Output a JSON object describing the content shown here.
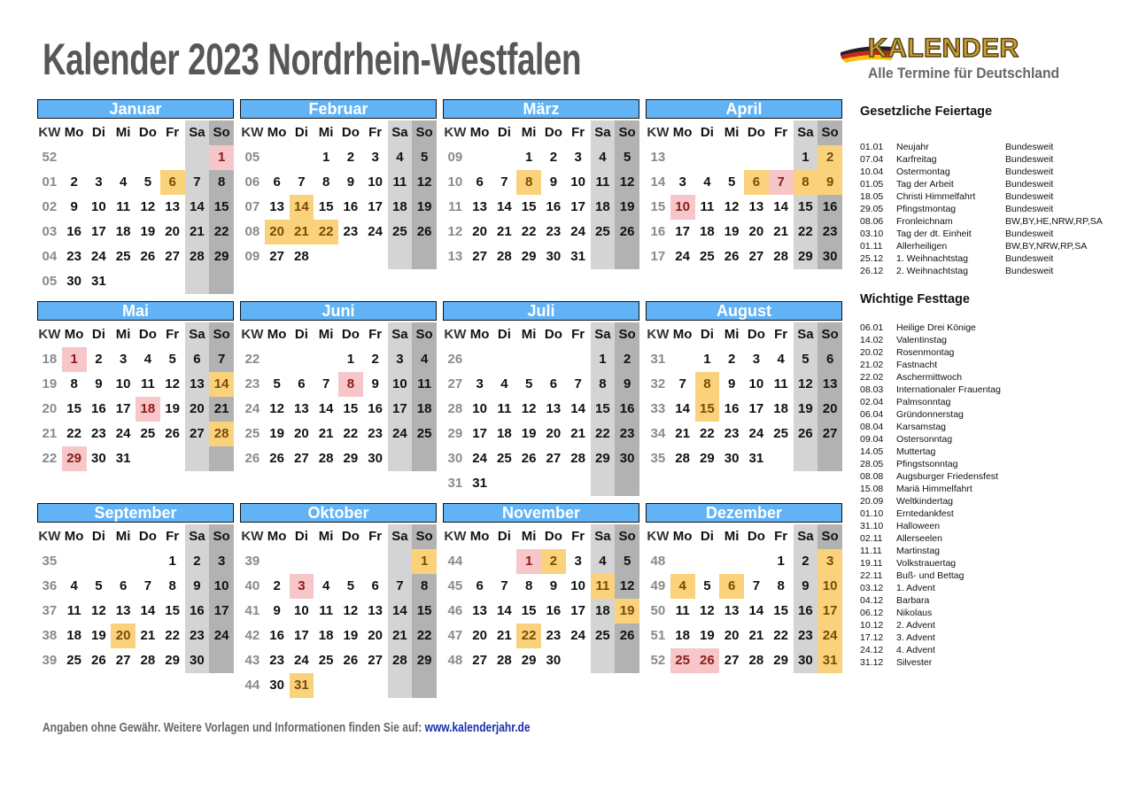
{
  "title": "Kalender 2023 Nordrhein-Westfalen",
  "logo": {
    "word": "KALENDER",
    "subtitle": "Alle Termine für Deutschland"
  },
  "weekday_header": [
    "KW",
    "Mo",
    "Di",
    "Mi",
    "Do",
    "Fr",
    "Sa",
    "So"
  ],
  "colors": {
    "header_blue": "#61b3f5",
    "saturday": "#d4d4d4",
    "sunday": "#b2b2b2",
    "holiday": "#f6c6c8",
    "festtag": "#fbd27c"
  },
  "months": [
    {
      "name": "Januar",
      "holidays": [
        1
      ],
      "festtage": [
        6
      ],
      "weeks": [
        [
          "52",
          "",
          "",
          "",
          "",
          "",
          "",
          1
        ],
        [
          "01",
          2,
          3,
          4,
          5,
          6,
          7,
          8
        ],
        [
          "02",
          9,
          10,
          11,
          12,
          13,
          14,
          15
        ],
        [
          "03",
          16,
          17,
          18,
          19,
          20,
          21,
          22
        ],
        [
          "04",
          23,
          24,
          25,
          26,
          27,
          28,
          29
        ],
        [
          "05",
          30,
          31,
          "",
          "",
          "",
          "",
          ""
        ]
      ]
    },
    {
      "name": "Februar",
      "holidays": [],
      "festtage": [
        14,
        20,
        21,
        22
      ],
      "weeks": [
        [
          "05",
          "",
          "",
          1,
          2,
          3,
          4,
          5
        ],
        [
          "06",
          6,
          7,
          8,
          9,
          10,
          11,
          12
        ],
        [
          "07",
          13,
          14,
          15,
          16,
          17,
          18,
          19
        ],
        [
          "08",
          20,
          21,
          22,
          23,
          24,
          25,
          26
        ],
        [
          "09",
          27,
          28,
          "",
          "",
          "",
          "",
          ""
        ]
      ]
    },
    {
      "name": "März",
      "holidays": [],
      "festtage": [
        8
      ],
      "weeks": [
        [
          "09",
          "",
          "",
          1,
          2,
          3,
          4,
          5
        ],
        [
          "10",
          6,
          7,
          8,
          9,
          10,
          11,
          12
        ],
        [
          "11",
          13,
          14,
          15,
          16,
          17,
          18,
          19
        ],
        [
          "12",
          20,
          21,
          22,
          23,
          24,
          25,
          26
        ],
        [
          "13",
          27,
          28,
          29,
          30,
          31,
          "",
          ""
        ]
      ]
    },
    {
      "name": "April",
      "holidays": [
        7,
        10
      ],
      "festtage": [
        2,
        6,
        8,
        9
      ],
      "weeks": [
        [
          "13",
          "",
          "",
          "",
          "",
          "",
          1,
          2
        ],
        [
          "14",
          3,
          4,
          5,
          6,
          7,
          8,
          9
        ],
        [
          "15",
          10,
          11,
          12,
          13,
          14,
          15,
          16
        ],
        [
          "16",
          17,
          18,
          19,
          20,
          21,
          22,
          23
        ],
        [
          "17",
          24,
          25,
          26,
          27,
          28,
          29,
          30
        ]
      ]
    },
    {
      "name": "Mai",
      "holidays": [
        1,
        18,
        29
      ],
      "festtage": [
        14,
        28
      ],
      "weeks": [
        [
          "18",
          1,
          2,
          3,
          4,
          5,
          6,
          7
        ],
        [
          "19",
          8,
          9,
          10,
          11,
          12,
          13,
          14
        ],
        [
          "20",
          15,
          16,
          17,
          18,
          19,
          20,
          21
        ],
        [
          "21",
          22,
          23,
          24,
          25,
          26,
          27,
          28
        ],
        [
          "22",
          29,
          30,
          31,
          "",
          "",
          "",
          ""
        ]
      ]
    },
    {
      "name": "Juni",
      "holidays": [
        8
      ],
      "festtage": [],
      "weeks": [
        [
          "22",
          "",
          "",
          "",
          1,
          2,
          3,
          4
        ],
        [
          "23",
          5,
          6,
          7,
          8,
          9,
          10,
          11
        ],
        [
          "24",
          12,
          13,
          14,
          15,
          16,
          17,
          18
        ],
        [
          "25",
          19,
          20,
          21,
          22,
          23,
          24,
          25
        ],
        [
          "26",
          26,
          27,
          28,
          29,
          30,
          "",
          ""
        ]
      ]
    },
    {
      "name": "Juli",
      "holidays": [],
      "festtage": [],
      "weeks": [
        [
          "26",
          "",
          "",
          "",
          "",
          "",
          1,
          2
        ],
        [
          "27",
          3,
          4,
          5,
          6,
          7,
          8,
          9
        ],
        [
          "28",
          10,
          11,
          12,
          13,
          14,
          15,
          16
        ],
        [
          "29",
          17,
          18,
          19,
          20,
          21,
          22,
          23
        ],
        [
          "30",
          24,
          25,
          26,
          27,
          28,
          29,
          30
        ],
        [
          "31",
          31,
          "",
          "",
          "",
          "",
          "",
          ""
        ]
      ]
    },
    {
      "name": "August",
      "holidays": [],
      "festtage": [
        8,
        15
      ],
      "weeks": [
        [
          "31",
          "",
          1,
          2,
          3,
          4,
          5,
          6
        ],
        [
          "32",
          7,
          8,
          9,
          10,
          11,
          12,
          13
        ],
        [
          "33",
          14,
          15,
          16,
          17,
          18,
          19,
          20
        ],
        [
          "34",
          21,
          22,
          23,
          24,
          25,
          26,
          27
        ],
        [
          "35",
          28,
          29,
          30,
          31,
          "",
          "",
          ""
        ]
      ]
    },
    {
      "name": "September",
      "holidays": [],
      "festtage": [
        20
      ],
      "weeks": [
        [
          "35",
          "",
          "",
          "",
          "",
          1,
          2,
          3
        ],
        [
          "36",
          4,
          5,
          6,
          7,
          8,
          9,
          10
        ],
        [
          "37",
          11,
          12,
          13,
          14,
          15,
          16,
          17
        ],
        [
          "38",
          18,
          19,
          20,
          21,
          22,
          23,
          24
        ],
        [
          "39",
          25,
          26,
          27,
          28,
          29,
          30,
          ""
        ]
      ]
    },
    {
      "name": "Oktober",
      "holidays": [
        3
      ],
      "festtage": [
        1,
        31
      ],
      "weeks": [
        [
          "39",
          "",
          "",
          "",
          "",
          "",
          "",
          1
        ],
        [
          "40",
          2,
          3,
          4,
          5,
          6,
          7,
          8
        ],
        [
          "41",
          9,
          10,
          11,
          12,
          13,
          14,
          15
        ],
        [
          "42",
          16,
          17,
          18,
          19,
          20,
          21,
          22
        ],
        [
          "43",
          23,
          24,
          25,
          26,
          27,
          28,
          29
        ],
        [
          "44",
          30,
          31,
          "",
          "",
          "",
          "",
          ""
        ]
      ]
    },
    {
      "name": "November",
      "holidays": [
        1
      ],
      "festtage": [
        2,
        11,
        19,
        22
      ],
      "weeks": [
        [
          "44",
          "",
          "",
          1,
          2,
          3,
          4,
          5
        ],
        [
          "45",
          6,
          7,
          8,
          9,
          10,
          11,
          12
        ],
        [
          "46",
          13,
          14,
          15,
          16,
          17,
          18,
          19
        ],
        [
          "47",
          20,
          21,
          22,
          23,
          24,
          25,
          26
        ],
        [
          "48",
          27,
          28,
          29,
          30,
          "",
          "",
          ""
        ]
      ]
    },
    {
      "name": "Dezember",
      "holidays": [
        25,
        26
      ],
      "festtage": [
        3,
        4,
        6,
        10,
        17,
        24,
        31
      ],
      "weeks": [
        [
          "48",
          "",
          "",
          "",
          "",
          1,
          2,
          3
        ],
        [
          "49",
          4,
          5,
          6,
          7,
          8,
          9,
          10
        ],
        [
          "50",
          11,
          12,
          13,
          14,
          15,
          16,
          17
        ],
        [
          "51",
          18,
          19,
          20,
          21,
          22,
          23,
          24
        ],
        [
          "52",
          25,
          26,
          27,
          28,
          29,
          30,
          31
        ]
      ]
    }
  ],
  "feiertage": {
    "heading": "Gesetzliche Feiertage",
    "items": [
      {
        "date": "01.01",
        "name": "Neujahr",
        "region": "Bundesweit"
      },
      {
        "date": "07.04",
        "name": "Karfreitag",
        "region": "Bundesweit"
      },
      {
        "date": "10.04",
        "name": "Ostermontag",
        "region": "Bundesweit"
      },
      {
        "date": "01.05",
        "name": "Tag der Arbeit",
        "region": "Bundesweit"
      },
      {
        "date": "18.05",
        "name": "Christi Himmelfahrt",
        "region": "Bundesweit"
      },
      {
        "date": "29.05",
        "name": "Pfingstmontag",
        "region": "Bundesweit"
      },
      {
        "date": "08.06",
        "name": "Fronleichnam",
        "region": "BW,BY,HE,NRW,RP,SA"
      },
      {
        "date": "03.10",
        "name": "Tag der dt. Einheit",
        "region": "Bundesweit"
      },
      {
        "date": "01.11",
        "name": "Allerheiligen",
        "region": "BW,BY,NRW,RP,SA"
      },
      {
        "date": "25.12",
        "name": "1. Weihnachtstag",
        "region": "Bundesweit"
      },
      {
        "date": "26.12",
        "name": "2. Weihnachtstag",
        "region": "Bundesweit"
      }
    ]
  },
  "festtage": {
    "heading": "Wichtige Festtage",
    "items": [
      {
        "date": "06.01",
        "name": "Heilige Drei Könige"
      },
      {
        "date": "14.02",
        "name": "Valentinstag"
      },
      {
        "date": "20.02",
        "name": "Rosenmontag"
      },
      {
        "date": "21.02",
        "name": "Fastnacht"
      },
      {
        "date": "22.02",
        "name": "Aschermittwoch"
      },
      {
        "date": "08.03",
        "name": "Internationaler Frauentag"
      },
      {
        "date": "02.04",
        "name": "Palmsonntag"
      },
      {
        "date": "06.04",
        "name": "Gründonnerstag"
      },
      {
        "date": "08.04",
        "name": "Karsamstag"
      },
      {
        "date": "09.04",
        "name": "Ostersonntag"
      },
      {
        "date": "14.05",
        "name": "Muttertag"
      },
      {
        "date": "28.05",
        "name": "Pfingstsonntag"
      },
      {
        "date": "08.08",
        "name": "Augsburger Friedensfest"
      },
      {
        "date": "15.08",
        "name": "Mariä Himmelfahrt"
      },
      {
        "date": "20.09",
        "name": "Weltkindertag"
      },
      {
        "date": "01.10",
        "name": "Erntedankfest"
      },
      {
        "date": "31.10",
        "name": "Halloween"
      },
      {
        "date": "02.11",
        "name": "Allerseelen"
      },
      {
        "date": "11.11",
        "name": "Martinstag"
      },
      {
        "date": "19.11",
        "name": "Volkstrauertag"
      },
      {
        "date": "22.11",
        "name": "Buß- und Bettag"
      },
      {
        "date": "03.12",
        "name": "1. Advent"
      },
      {
        "date": "04.12",
        "name": "Barbara"
      },
      {
        "date": "06.12",
        "name": "Nikolaus"
      },
      {
        "date": "10.12",
        "name": "2. Advent"
      },
      {
        "date": "17.12",
        "name": "3. Advent"
      },
      {
        "date": "24.12",
        "name": "4. Advent"
      },
      {
        "date": "31.12",
        "name": "Silvester"
      }
    ]
  },
  "footer": {
    "text": "Angaben ohne Gewähr. Weitere Vorlagen und Informationen finden Sie auf: ",
    "link": "www.kalenderjahr.de"
  }
}
